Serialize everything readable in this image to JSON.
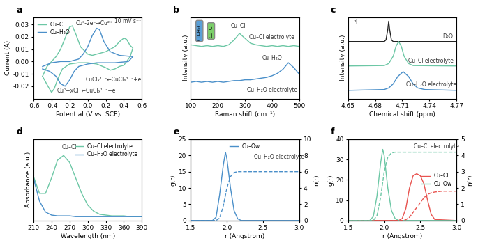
{
  "chart_data": [
    {
      "type": "line",
      "title": "a",
      "x_label": "Potential (V vs. SCE)",
      "y_label": "Current (A)",
      "xlim": [
        -0.6,
        0.6
      ],
      "xticks": [
        -0.6,
        -0.4,
        -0.2,
        0.0,
        0.2,
        0.4,
        0.6
      ],
      "ylim": [
        -0.03,
        0.036
      ],
      "yticks": [
        -0.02,
        -0.01,
        {
          "value": 0,
          "label": "0.00"
        },
        0.01,
        0.02,
        0.03
      ],
      "legend": "upper left",
      "series": [
        {
          "name": "Cu–Cl",
          "color": "#6cc7a5",
          "line_style": "solid",
          "x": [
            -0.5,
            -0.45,
            -0.4,
            -0.35,
            -0.3,
            -0.25,
            -0.2,
            -0.17,
            -0.13,
            -0.08,
            0.0,
            0.05,
            0.1,
            0.2,
            0.3,
            0.35,
            0.4,
            0.43,
            0.47,
            0.5,
            0.47,
            0.4,
            0.35,
            0.3,
            0.25,
            0.2,
            0.1,
            0.0,
            -0.1,
            -0.2,
            -0.28,
            -0.33,
            -0.37,
            -0.4,
            -0.44,
            -0.5
          ],
          "values": [
            -0.012,
            -0.004,
            0.0,
            0.004,
            0.01,
            0.019,
            0.028,
            0.029,
            0.022,
            0.012,
            0.006,
            0.005,
            0.006,
            0.008,
            0.012,
            0.016,
            0.019,
            0.018,
            0.013,
            0.011,
            0.004,
            -0.003,
            -0.004,
            -0.006,
            -0.007,
            -0.005,
            -0.002,
            -0.001,
            -0.001,
            -0.002,
            -0.006,
            -0.014,
            -0.022,
            -0.025,
            -0.02,
            -0.012
          ]
        },
        {
          "name": "Cu–H₂O",
          "color": "#4a8fc9",
          "line_style": "solid",
          "x": [
            -0.5,
            -0.4,
            -0.3,
            -0.2,
            -0.1,
            -0.05,
            0.0,
            0.05,
            0.1,
            0.13,
            0.18,
            0.25,
            0.35,
            0.5,
            0.45,
            0.3,
            0.1,
            0.0,
            -0.1,
            -0.15,
            -0.2,
            -0.25,
            -0.3,
            -0.35,
            -0.42,
            -0.5
          ],
          "values": [
            -0.004,
            -0.001,
            0.0,
            0.0,
            0.002,
            0.006,
            0.012,
            0.021,
            0.027,
            0.026,
            0.016,
            0.008,
            0.005,
            0.004,
            0.0,
            -0.001,
            -0.001,
            -0.002,
            -0.004,
            -0.008,
            -0.015,
            -0.02,
            -0.018,
            -0.012,
            -0.008,
            -0.006
          ]
        }
      ],
      "annotations": [
        {
          "text": "10 mV s⁻¹",
          "x": 0.44,
          "y": 0.0325
        },
        {
          "text": "Cu⁰-2e⁻→Cu²⁺",
          "x": 0.07,
          "y": 0.031
        },
        {
          "text": "CuClₓ¹⁻ˣ←CuClₓ²⁻ˣ+e⁻",
          "x": 0.3,
          "y": -0.015
        },
        {
          "text": "Cu⁰+xCl⁻←CuClₓ¹⁻ˣ+e⁻",
          "x": 0.0,
          "y": -0.024
        }
      ]
    },
    {
      "type": "line",
      "title": "b",
      "x_label": "Raman shift (cm⁻¹)",
      "y_label": "Intensity (a.u.)",
      "xlim": [
        100,
        500
      ],
      "xticks": [
        100,
        200,
        300,
        400,
        500
      ],
      "ylim": [
        0,
        10
      ],
      "tick_labels": "x",
      "series": [
        {
          "color": "#6cc7a5",
          "line_style": "solid",
          "x": [
            100,
            120,
            140,
            160,
            180,
            200,
            220,
            240,
            260,
            280,
            300,
            320,
            340,
            360,
            380,
            400,
            420,
            440,
            460,
            480,
            500
          ],
          "values": [
            6.6,
            6.5,
            6.4,
            6.5,
            6.4,
            6.5,
            6.4,
            6.6,
            7.2,
            8.0,
            7.4,
            6.8,
            6.6,
            6.5,
            6.4,
            6.5,
            6.4,
            6.5,
            6.4,
            6.5,
            6.4
          ]
        },
        {
          "color": "#4a8fc9",
          "line_style": "solid",
          "x": [
            100,
            120,
            140,
            160,
            180,
            200,
            220,
            240,
            260,
            280,
            300,
            320,
            340,
            360,
            380,
            400,
            420,
            440,
            460,
            480,
            500
          ],
          "values": [
            2.0,
            2.1,
            2.0,
            2.1,
            2.0,
            2.1,
            2.0,
            2.1,
            2.2,
            2.2,
            2.3,
            2.3,
            2.4,
            2.5,
            2.6,
            2.8,
            3.1,
            3.6,
            4.4,
            3.8,
            3.0
          ]
        }
      ],
      "annotations": [
        {
          "text": "Cu–Cl",
          "x": 275,
          "y": 8.9
        },
        {
          "text": "Cu–H₂O",
          "x": 400,
          "y": 5.0
        },
        {
          "text": "Cu–Cl electrolyte",
          "x": 400,
          "y": 7.5
        },
        {
          "text": "Cu–H₂O electrolyte",
          "x": 400,
          "y": 1.0
        },
        {
          "text": "Cu–H₂O",
          "x": 132,
          "y": 8.3,
          "color": "#5aa0d8"
        },
        {
          "text": "Cu–Cl",
          "x": 175,
          "y": 8.3,
          "color": "#7ccf6a"
        }
      ]
    },
    {
      "type": "line",
      "title": "c",
      "x_label": "Chemical shift (ppm)",
      "y_label": "Intensity (a.u.)",
      "xlim": [
        4.65,
        4.77
      ],
      "xticks": [
        4.65,
        4.68,
        4.71,
        4.74,
        4.77
      ],
      "ylim": [
        0,
        10
      ],
      "tick_labels": "x",
      "series": [
        {
          "color": "#222222",
          "line_style": "solid",
          "x": [
            4.65,
            4.69,
            4.692,
            4.694,
            4.695,
            4.696,
            4.698,
            4.7,
            4.77
          ],
          "values": [
            7,
            7,
            7.2,
            8.5,
            9.5,
            8.5,
            7.2,
            7,
            7
          ]
        },
        {
          "color": "#6cc7a5",
          "line_style": "solid",
          "x": [
            4.65,
            4.69,
            4.695,
            4.7,
            4.703,
            4.706,
            4.709,
            4.712,
            4.717,
            4.722,
            4.77
          ],
          "values": [
            4,
            4.05,
            4.3,
            5.2,
            6.4,
            7.0,
            6.4,
            5.2,
            4.3,
            4.05,
            4
          ]
        },
        {
          "color": "#4a8fc9",
          "line_style": "solid",
          "x": [
            4.65,
            4.69,
            4.695,
            4.7,
            4.705,
            4.711,
            4.717,
            4.722,
            4.727,
            4.735,
            4.77
          ],
          "values": [
            1,
            1.1,
            1.3,
            1.8,
            2.7,
            3.3,
            2.7,
            1.8,
            1.3,
            1.1,
            1
          ]
        }
      ],
      "annotations": [
        {
          "text": "¹H",
          "x": 4.66,
          "y": 9.3
        },
        {
          "text": "D₂O",
          "x": 4.76,
          "y": 7.6
        },
        {
          "text": "Cu–Cl electrolyte",
          "x": 4.742,
          "y": 4.6
        },
        {
          "text": "Cu–H₂O electrolyte",
          "x": 4.742,
          "y": 1.7
        }
      ]
    },
    {
      "type": "line",
      "title": "d",
      "x_label": "Wavelength (nm)",
      "y_label": "Absorbance (a.u.)",
      "xlim": [
        210,
        390
      ],
      "xticks": [
        210,
        240,
        270,
        300,
        330,
        360,
        390
      ],
      "ylim": [
        -0.05,
        1.0
      ],
      "tick_labels": "x",
      "legend": "upper right",
      "series": [
        {
          "name": "Cu–Cl electrolyte",
          "color": "#6cc7a5",
          "line_style": "solid",
          "x": [
            210,
            220,
            230,
            240,
            250,
            260,
            270,
            280,
            290,
            300,
            310,
            320,
            330,
            340,
            350,
            360,
            370,
            380,
            390
          ],
          "values": [
            0.52,
            0.3,
            0.3,
            0.5,
            0.73,
            0.79,
            0.7,
            0.5,
            0.3,
            0.15,
            0.07,
            0.03,
            0.02,
            0.01,
            0.01,
            0.01,
            0.0,
            0.0,
            0.0
          ]
        },
        {
          "name": "Cu–H₂O electrolyte",
          "color": "#4a8fc9",
          "line_style": "solid",
          "x": [
            210,
            220,
            230,
            240,
            250,
            260,
            270,
            280,
            290,
            300,
            310,
            320,
            330,
            340,
            350,
            360,
            370,
            380,
            390
          ],
          "values": [
            0.5,
            0.2,
            0.06,
            0.02,
            0.01,
            0.01,
            0.01,
            0.0,
            0.0,
            0.0,
            0.0,
            0.0,
            0.0,
            0.0,
            0.0,
            0.0,
            0.0,
            0.0,
            0.0
          ]
        }
      ],
      "annotations": [
        {
          "text": "Cu–Cl",
          "x": 270,
          "y": 0.9
        }
      ]
    },
    {
      "type": "line",
      "title": "e",
      "x_label": "r (Angstrom)",
      "y_label": "g(r)",
      "y2_label": "n(r)",
      "xlim": [
        1.5,
        3.0
      ],
      "xticks": [
        1.5,
        2.0,
        2.5,
        3.0
      ],
      "ylim": [
        0,
        25
      ],
      "yticks": [
        0,
        5,
        10,
        15,
        20,
        25
      ],
      "y2lim": [
        0,
        10
      ],
      "y2ticks": [
        0,
        2,
        4,
        6,
        8,
        10
      ],
      "legend": "upper center",
      "series": [
        {
          "name": "Cu–Ow",
          "color": "#4a8fc9",
          "line_style": "solid",
          "x": [
            1.5,
            1.8,
            1.85,
            1.9,
            1.95,
            1.98,
            2.0,
            2.05,
            2.1,
            2.15,
            2.2,
            3.0
          ],
          "values": [
            0,
            0,
            1,
            8,
            17,
            21,
            19,
            10,
            3,
            0.5,
            0,
            0
          ]
        },
        {
          "color": "#4a8fc9",
          "line_style": "dashed",
          "axis": "y2",
          "x": [
            1.5,
            1.85,
            1.9,
            1.95,
            2.0,
            2.05,
            2.1,
            2.15,
            3.0
          ],
          "values": [
            0,
            0,
            0.3,
            1.8,
            4,
            5.4,
            5.9,
            6,
            6
          ]
        }
      ],
      "annotations": [
        {
          "text": "Cu–H₂O electrolyte",
          "x": 2.72,
          "y": 19.5
        }
      ]
    },
    {
      "type": "line",
      "title": "f",
      "x_label": "r (Angstrom)",
      "y_label": "g(r)",
      "y2_label": "n(r)",
      "xlim": [
        1.5,
        3.0
      ],
      "xticks": [
        1.5,
        2.0,
        2.5,
        3.0
      ],
      "ylim": [
        0,
        40
      ],
      "yticks": [
        0,
        10,
        20,
        30,
        40
      ],
      "y2lim": [
        0,
        5
      ],
      "y2ticks": [
        0,
        1,
        2,
        3,
        4,
        5
      ],
      "legend": "center right",
      "series": [
        {
          "name": "Cu–Cl",
          "color": "#e8534f",
          "line_style": "solid",
          "x": [
            1.5,
            2.2,
            2.25,
            2.3,
            2.35,
            2.4,
            2.45,
            2.5,
            2.55,
            2.6,
            2.65,
            2.7,
            3.0
          ],
          "values": [
            0,
            0,
            1,
            6,
            16,
            22,
            23,
            22,
            18,
            10,
            3,
            0.5,
            0
          ]
        },
        {
          "name": "Cu–Ow",
          "color": "#6cc7a5",
          "line_style": "solid",
          "x": [
            1.5,
            1.8,
            1.85,
            1.9,
            1.95,
            1.98,
            2.0,
            2.05,
            2.1,
            2.15,
            2.2,
            3.0
          ],
          "values": [
            0,
            0,
            2,
            12,
            28,
            35,
            32,
            16,
            5,
            1,
            0,
            0
          ]
        },
        {
          "color": "#e8534f",
          "line_style": "dashed",
          "axis": "y2",
          "x": [
            1.5,
            2.25,
            2.3,
            2.35,
            2.4,
            2.45,
            2.5,
            2.55,
            2.6,
            2.65,
            2.7,
            2.8,
            3.0
          ],
          "values": [
            0,
            0,
            0.05,
            0.2,
            0.5,
            0.8,
            1.1,
            1.4,
            1.6,
            1.7,
            1.75,
            1.8,
            1.8
          ]
        },
        {
          "color": "#6cc7a5",
          "line_style": "dashed",
          "axis": "y2",
          "x": [
            1.5,
            1.85,
            1.9,
            1.95,
            2.0,
            2.05,
            2.1,
            2.15,
            3.0
          ],
          "values": [
            0,
            0,
            0.3,
            1.4,
            3.0,
            3.9,
            4.15,
            4.2,
            4.2
          ]
        }
      ],
      "annotations": [
        {
          "text": "Cu–Cl electrolyte",
          "x": 2.72,
          "y": 36.5
        }
      ]
    }
  ]
}
